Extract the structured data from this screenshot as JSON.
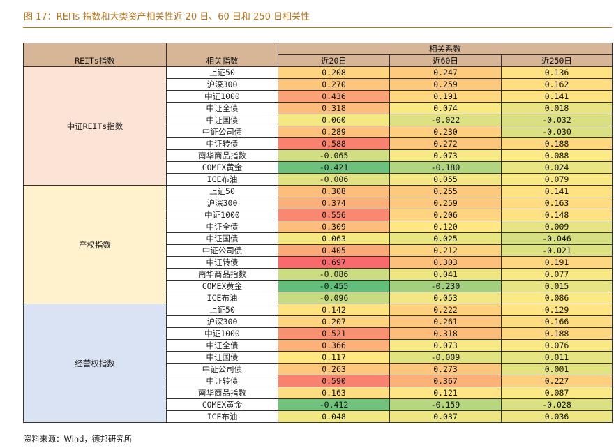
{
  "title": "图 17：REITs 指数和大类资产相关性近 20 日、60 日和 250 日相关性",
  "header": {
    "col_reits": "REITs指数",
    "col_index": "相关指数",
    "col_corr": "相关系数",
    "periods": [
      "近20日",
      "近60日",
      "近250日"
    ]
  },
  "groups": [
    {
      "name": "中证REITs指数",
      "bg": "#fbe4d5",
      "rows": [
        {
          "index": "上证50",
          "v20": "0.208",
          "v60": "0.247",
          "v250": "0.136"
        },
        {
          "index": "沪深300",
          "v20": "0.270",
          "v60": "0.259",
          "v250": "0.162"
        },
        {
          "index": "中证1000",
          "v20": "0.436",
          "v60": "0.191",
          "v250": "0.141"
        },
        {
          "index": "中证全债",
          "v20": "0.318",
          "v60": "0.074",
          "v250": "0.018"
        },
        {
          "index": "中证国债",
          "v20": "0.060",
          "v60": "-0.022",
          "v250": "-0.032"
        },
        {
          "index": "中证公司债",
          "v20": "0.289",
          "v60": "0.230",
          "v250": "-0.030"
        },
        {
          "index": "中证转债",
          "v20": "0.588",
          "v60": "0.272",
          "v250": "0.188"
        },
        {
          "index": "南华商品指数",
          "v20": "-0.065",
          "v60": "0.073",
          "v250": "0.088"
        },
        {
          "index": "COMEX黄金",
          "v20": "-0.421",
          "v60": "-0.180",
          "v250": "0.024"
        },
        {
          "index": "ICE布油",
          "v20": "-0.006",
          "v60": "0.055",
          "v250": "0.079"
        }
      ]
    },
    {
      "name": "产权指数",
      "bg": "#fff2cc",
      "rows": [
        {
          "index": "上证50",
          "v20": "0.308",
          "v60": "0.255",
          "v250": "0.141"
        },
        {
          "index": "沪深300",
          "v20": "0.374",
          "v60": "0.259",
          "v250": "0.163"
        },
        {
          "index": "中证1000",
          "v20": "0.556",
          "v60": "0.206",
          "v250": "0.148"
        },
        {
          "index": "中证全债",
          "v20": "0.309",
          "v60": "0.120",
          "v250": "0.009"
        },
        {
          "index": "中证国债",
          "v20": "0.063",
          "v60": "0.025",
          "v250": "-0.046"
        },
        {
          "index": "中证公司债",
          "v20": "0.405",
          "v60": "0.212",
          "v250": "-0.021"
        },
        {
          "index": "中证转债",
          "v20": "0.697",
          "v60": "0.303",
          "v250": "0.191"
        },
        {
          "index": "南华商品指数",
          "v20": "-0.086",
          "v60": "0.041",
          "v250": "0.077"
        },
        {
          "index": "COMEX黄金",
          "v20": "-0.455",
          "v60": "-0.230",
          "v250": "0.015"
        },
        {
          "index": "ICE布油",
          "v20": "-0.096",
          "v60": "0.053",
          "v250": "0.086"
        }
      ]
    },
    {
      "name": "经营权指数",
      "bg": "#dae3f3",
      "rows": [
        {
          "index": "上证50",
          "v20": "0.142",
          "v60": "0.222",
          "v250": "0.129"
        },
        {
          "index": "沪深300",
          "v20": "0.207",
          "v60": "0.261",
          "v250": "0.166"
        },
        {
          "index": "中证1000",
          "v20": "0.521",
          "v60": "0.318",
          "v250": "0.188"
        },
        {
          "index": "中证全债",
          "v20": "0.366",
          "v60": "0.073",
          "v250": "0.076"
        },
        {
          "index": "中证国债",
          "v20": "0.117",
          "v60": "-0.009",
          "v250": "0.011"
        },
        {
          "index": "中证公司债",
          "v20": "0.263",
          "v60": "0.273",
          "v250": "0.001"
        },
        {
          "index": "中证转债",
          "v20": "0.590",
          "v60": "0.367",
          "v250": "0.227"
        },
        {
          "index": "南华商品指数",
          "v20": "0.163",
          "v60": "0.121",
          "v250": "0.087"
        },
        {
          "index": "COMEX黄金",
          "v20": "-0.412",
          "v60": "-0.159",
          "v250": "-0.028"
        },
        {
          "index": "ICE布油",
          "v20": "0.048",
          "v60": "0.037",
          "v250": "0.036"
        }
      ]
    }
  ],
  "colors": {
    "header_bg": "#d6b696",
    "title_color": "#b5741e",
    "scale_low": "#63be7b",
    "scale_mid": "#ffeb84",
    "scale_high": "#f8696b"
  },
  "source": "资料来源：Wind，德邦研究所"
}
